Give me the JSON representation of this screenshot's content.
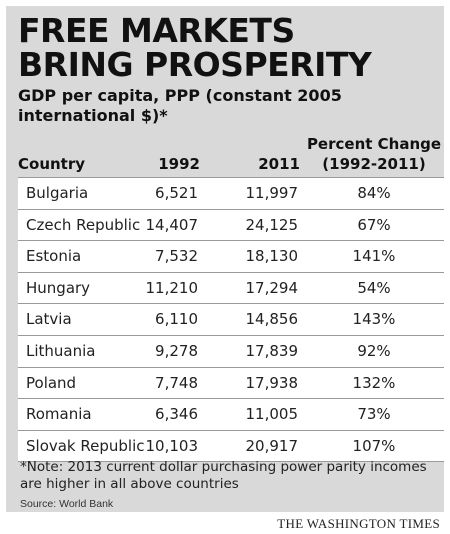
{
  "title_lines": [
    "FREE MARKETS",
    "BRING PROSPERITY"
  ],
  "subtitle": "GDP per capita, PPP (constant 2005 international $)*",
  "chart_data": {
    "type": "table",
    "title": "FREE MARKETS BRING PROSPERITY",
    "subtitle": "GDP per capita, PPP (constant 2005 international $)*",
    "headers": {
      "country": "Country",
      "y1992": "1992",
      "y2011": "2011",
      "pct_line1": "Percent Change",
      "pct_line2": "(1992-2011)"
    },
    "rows": [
      {
        "country": "Bulgaria",
        "y1992": "6,521",
        "y2011": "11,997",
        "pct": "84%"
      },
      {
        "country": "Czech Republic",
        "y1992": "14,407",
        "y2011": "24,125",
        "pct": "67%"
      },
      {
        "country": "Estonia",
        "y1992": "7,532",
        "y2011": "18,130",
        "pct": "141%"
      },
      {
        "country": "Hungary",
        "y1992": "11,210",
        "y2011": "17,294",
        "pct": "54%"
      },
      {
        "country": "Latvia",
        "y1992": "6,110",
        "y2011": "14,856",
        "pct": "143%"
      },
      {
        "country": "Lithuania",
        "y1992": "9,278",
        "y2011": "17,839",
        "pct": "92%"
      },
      {
        "country": "Poland",
        "y1992": "7,748",
        "y2011": "17,938",
        "pct": "132%"
      },
      {
        "country": "Romania",
        "y1992": "6,346",
        "y2011": "11,005",
        "pct": "73%"
      },
      {
        "country": "Slovak Republic",
        "y1992": "10,103",
        "y2011": "20,917",
        "pct": "107%"
      }
    ]
  },
  "note": "*Note: 2013 current dollar purchasing power parity incomes are higher in all above countries",
  "source": "Source: World Bank",
  "credit": "THE WASHINGTON TIMES",
  "colors": {
    "panel": "#d9d9d9",
    "row_bg": "#ffffff",
    "rule": "#9a9a9a",
    "text": "#1a1a1a"
  }
}
